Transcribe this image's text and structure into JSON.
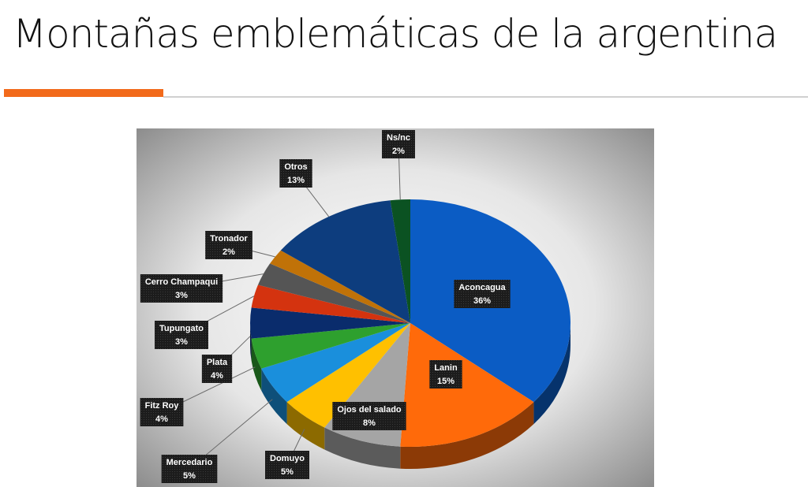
{
  "slide": {
    "title": "Montañas emblemáticas de la argentina"
  },
  "chart_data": {
    "type": "pie",
    "categories": [
      "Aconcagua",
      "Lanin",
      "Ojos del salado",
      "Domuyo",
      "Mercedario",
      "Fitz Roy",
      "Plata",
      "Tupungato",
      "Cerro Champaqui",
      "Tronador",
      "Otros",
      "Ns/nc"
    ],
    "values": [
      36,
      15,
      8,
      5,
      5,
      4,
      4,
      3,
      3,
      2,
      13,
      2
    ],
    "value_labels": [
      "36%",
      "15%",
      "8%",
      "5%",
      "5%",
      "4%",
      "4%",
      "3%",
      "3%",
      "2%",
      "13%",
      "2%"
    ],
    "colors": [
      "#0b5cc4",
      "#ff6a0a",
      "#a5a5a5",
      "#ffc000",
      "#1a8fdc",
      "#2ea02e",
      "#0a2c6c",
      "#d4330f",
      "#555555",
      "#c07208",
      "#0d3d7e",
      "#0b5222"
    ]
  }
}
